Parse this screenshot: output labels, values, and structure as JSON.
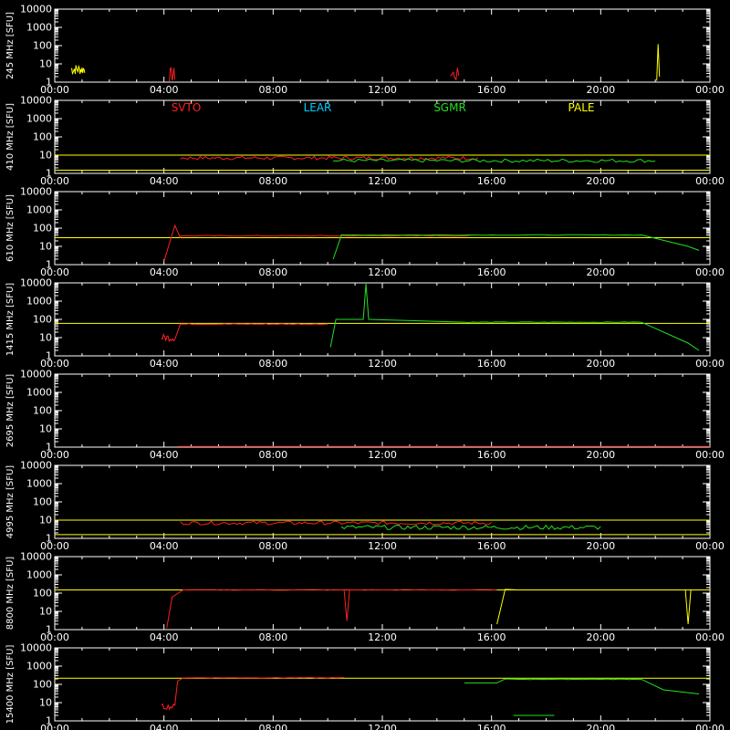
{
  "chart_data": {
    "type": "line",
    "x_tick_labels": [
      "00:00",
      "04:00",
      "08:00",
      "12:00",
      "16:00",
      "20:00",
      "00:00"
    ],
    "x_tick_hours": [
      0,
      4,
      8,
      12,
      16,
      20,
      24
    ],
    "xlim_hours": [
      0,
      24
    ],
    "y_tick_labels": [
      "10000",
      "1000",
      "100",
      "10",
      "1"
    ],
    "ylim": [
      1,
      10000
    ],
    "y_scale": "log",
    "grid": false,
    "legend_position": "top",
    "colors": {
      "axis": "#ffffff",
      "SVTO": "#ff2020",
      "LEAR": "#00d0ff",
      "SGMR": "#20e020",
      "PALE": "#ffff00"
    },
    "series": [
      {
        "name": "SVTO",
        "color": "#ff2020"
      },
      {
        "name": "LEAR",
        "color": "#00d0ff"
      },
      {
        "name": "SGMR",
        "color": "#20e020"
      },
      {
        "name": "PALE",
        "color": "#ffff00"
      }
    ],
    "panels": [
      {
        "frequency": "245 MHz",
        "unit": "[SFU]"
      },
      {
        "frequency": "410 MHz",
        "unit": "[SFU]"
      },
      {
        "frequency": "610 MHz",
        "unit": "[SFU]"
      },
      {
        "frequency": "1415 MHz",
        "unit": "[SFU]"
      },
      {
        "frequency": "2695 MHz",
        "unit": "[SFU]"
      },
      {
        "frequency": "4995 MHz",
        "unit": "[SFU]"
      },
      {
        "frequency": "8800 MHz",
        "unit": "[SFU]"
      },
      {
        "frequency": "15400 MHz",
        "unit": "[SFU]"
      }
    ]
  }
}
